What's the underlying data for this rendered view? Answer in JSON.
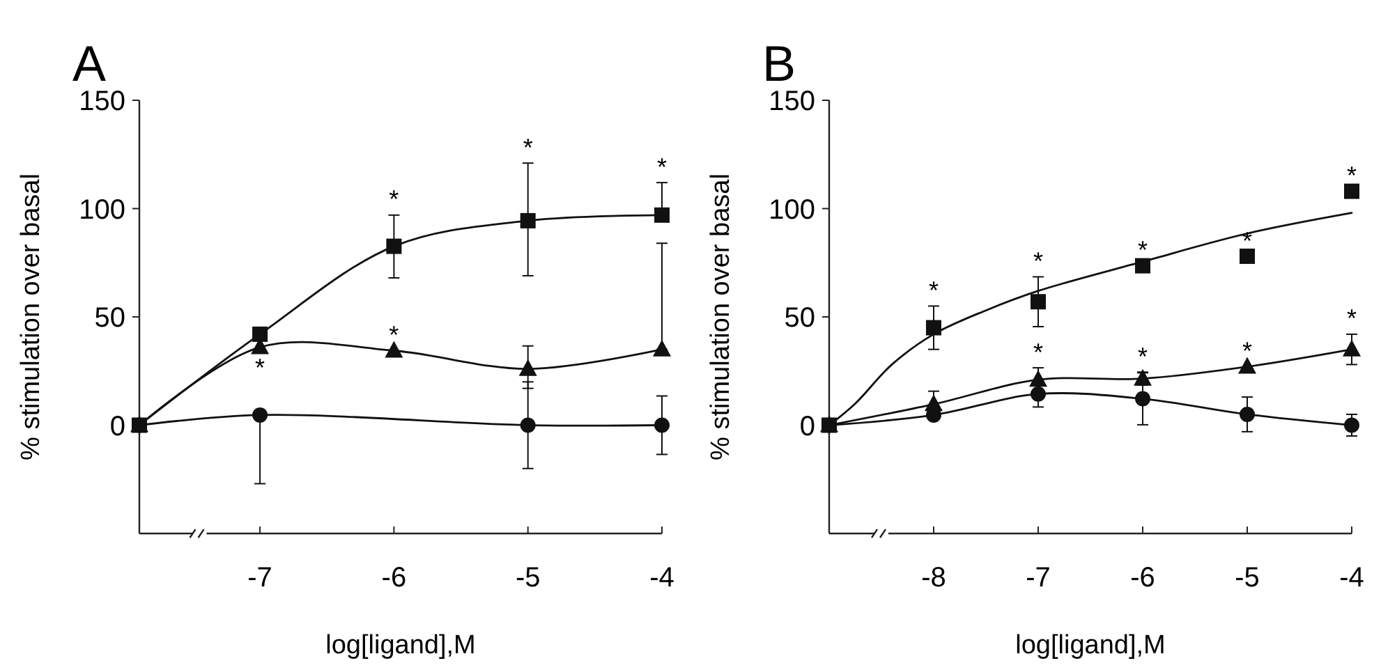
{
  "chart_data": [
    {
      "type": "line",
      "title": "A",
      "xlabel": "log[ligand],M",
      "ylabel": "% stimulation over basal",
      "xlim": [
        -7.9,
        -4
      ],
      "xticks": [
        -7,
        -6,
        -5,
        -4
      ],
      "ylim": [
        -50,
        150
      ],
      "yticks": [
        0,
        50,
        100,
        150
      ],
      "x": [
        -7.9,
        -7,
        -6,
        -5,
        -4
      ],
      "series": [
        {
          "color": "#111111",
          "marker": "square",
          "values": [
            0,
            42,
            82.6,
            94.4,
            97
          ],
          "errors": [
            null,
            null,
            [
              68,
              97
            ],
            [
              69,
              121
            ],
            [
              97,
              112
            ]
          ]
        },
        {
          "color": "#111111",
          "marker": "circle",
          "values": [
            0,
            4.7,
            null,
            0,
            0
          ],
          "errors": [
            null,
            [
              -27,
              4.7
            ],
            null,
            20,
            13.5
          ]
        },
        {
          "color": "#111111",
          "marker": "triangle",
          "values": [
            0,
            36,
            34.4,
            26,
            35
          ],
          "errors": [
            null,
            null,
            null,
            [
              17,
              36.6
            ],
            [
              35,
              84
            ]
          ]
        }
      ],
      "annotations": [
        {
          "text": "*",
          "x": -6,
          "y": 82.6
        },
        {
          "text": "*",
          "x": -5,
          "y": 94.4
        },
        {
          "text": "*",
          "x": -4,
          "y": 97
        },
        {
          "text": "*",
          "x": -7,
          "y": 36
        },
        {
          "text": "*",
          "x": -6,
          "y": 34.4
        }
      ]
    },
    {
      "type": "line",
      "title": "B",
      "xlabel": "log[ligand],M",
      "ylabel": "% stimulation over basal",
      "xlim": [
        -9,
        -4
      ],
      "xticks": [
        -8,
        -7,
        -6,
        -5,
        -4
      ],
      "ylim": [
        -50,
        150
      ],
      "yticks": [
        0,
        50,
        100,
        150
      ],
      "x": [
        -9,
        -8,
        -7,
        -6,
        -5,
        -4
      ],
      "series": [
        {
          "type": "scatter",
          "color": "#111111",
          "marker": "square",
          "values": [
            0,
            45,
            57,
            73.6,
            78,
            108
          ],
          "errors": [
            null,
            10,
            11.5,
            null,
            null,
            null
          ]
        },
        {
          "type": "line",
          "color": "#111111",
          "marker": "none",
          "x": [
            -9,
            -8.75,
            -8.4,
            -8,
            -7.5,
            -7,
            -6,
            -5,
            -4
          ],
          "values": [
            0,
            10,
            28,
            42,
            53,
            62,
            75.5,
            88.5,
            98
          ]
        },
        {
          "color": "#111111",
          "marker": "triangle",
          "values": [
            0,
            9.7,
            21,
            21.5,
            27,
            35
          ],
          "errors": [
            null,
            6,
            5.5,
            3,
            null,
            7
          ]
        },
        {
          "color": "#111111",
          "marker": "circle",
          "values": [
            0,
            4.7,
            14.4,
            12.2,
            5,
            0
          ],
          "errors": [
            null,
            null,
            6,
            12,
            8,
            5
          ]
        }
      ],
      "annotations": [
        {
          "text": "*",
          "x": -8,
          "y": 45
        },
        {
          "text": "*",
          "x": -7,
          "y": 57
        },
        {
          "text": "*",
          "x": -6,
          "y": 73.6
        },
        {
          "text": "*",
          "x": -5,
          "y": 78
        },
        {
          "text": "*",
          "x": -4,
          "y": 108
        },
        {
          "text": "*",
          "x": -7,
          "y": 21
        },
        {
          "text": "*",
          "x": -6,
          "y": 21.5
        },
        {
          "text": "*",
          "x": -5,
          "y": 27
        },
        {
          "text": "*",
          "x": -4,
          "y": 35
        }
      ]
    }
  ]
}
